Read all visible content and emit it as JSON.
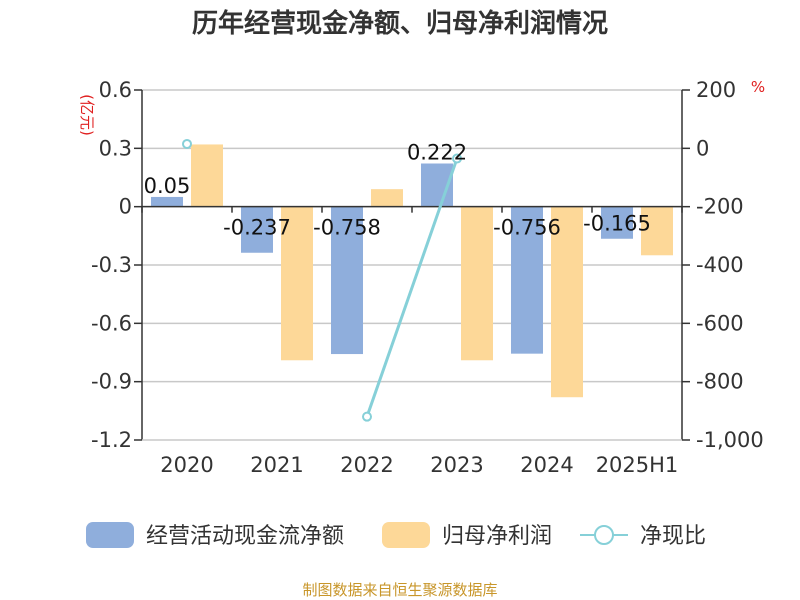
{
  "chart_data": {
    "type": "bar+line",
    "title": "历年经营现金净额、归母净利润情况",
    "categories": [
      "2020",
      "2021",
      "2022",
      "2023",
      "2024",
      "2025H1"
    ],
    "series": [
      {
        "name": "经营活动现金流净额",
        "type": "bar",
        "axis": "left",
        "color": "#8faedc",
        "values": [
          0.05,
          -0.237,
          -0.758,
          0.222,
          -0.756,
          -0.165
        ]
      },
      {
        "name": "归母净利润",
        "type": "bar",
        "axis": "left",
        "color": "#fdd898",
        "values": [
          0.32,
          -0.79,
          0.09,
          -0.79,
          -0.98,
          -0.25
        ]
      },
      {
        "name": "净现比",
        "type": "line",
        "axis": "right",
        "color": "#86d0d8",
        "values": [
          15,
          null,
          -920,
          -35,
          null,
          null
        ]
      }
    ],
    "data_labels": [
      "0.05",
      "-0.237",
      "-0.758",
      "0.222",
      "-0.756",
      "-0.165"
    ],
    "left_axis": {
      "unit": "(亿元)",
      "min": -1.2,
      "max": 0.6,
      "ticks": [
        "0.6",
        "0.3",
        "0",
        "-0.3",
        "-0.6",
        "-0.9",
        "-1.2"
      ]
    },
    "right_axis": {
      "unit": "%",
      "min": -1000,
      "max": 200,
      "ticks": [
        "200",
        "0",
        "-200",
        "-400",
        "-600",
        "-800",
        "-1,000"
      ]
    },
    "grid": true,
    "legend_position": "bottom"
  },
  "source": "制图数据来自恒生聚源数据库"
}
